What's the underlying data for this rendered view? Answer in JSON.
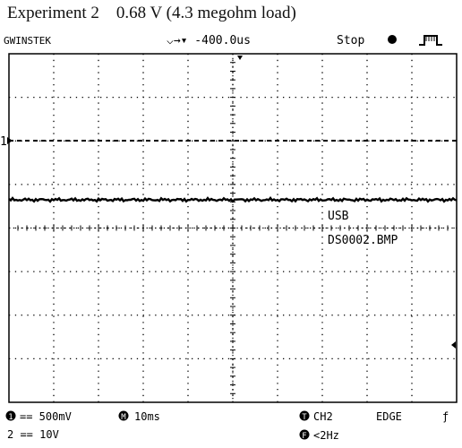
{
  "caption": "Experiment 2    0.68 V (4.3 megohm load)",
  "header": {
    "brand": "GWINSTEK",
    "trigger_position": "⌵→▾ -400.0us",
    "run_state": "Stop",
    "run_state_icon": "dot-icon",
    "trigger_type_icon": "pulse-icon"
  },
  "screen": {
    "channel_marker": "1",
    "overlay_line1": "USB",
    "overlay_line2": "DS0002.BMP"
  },
  "footer": {
    "ch1_badge": "1",
    "ch1_scale": "== 500mV",
    "ch2_scale": "2 == 10V",
    "timebase_badge": "M",
    "timebase": "10ms",
    "trigger_badge": "T",
    "trigger_source": "CH2",
    "trigger_mode": "EDGE",
    "trigger_slope": "ƒ",
    "freq_badge": "F",
    "frequency": "<2Hz"
  },
  "colors": {
    "trace": "#000000",
    "grid": "#000000",
    "background": "#ffffff"
  }
}
